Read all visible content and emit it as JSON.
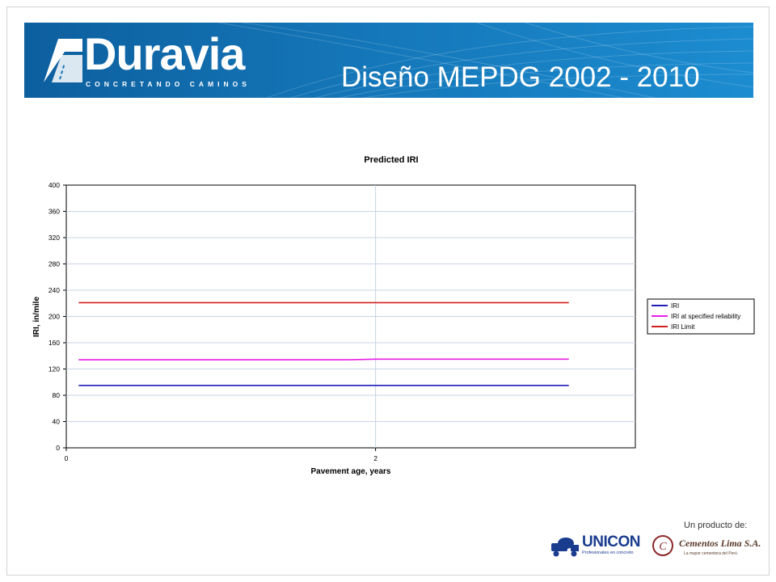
{
  "slide": {
    "title": "Diseño MEPDG 2002 - 2010",
    "footer_label": "Un producto de:"
  },
  "brand": {
    "name": "Duravia",
    "tagline": "CONCRETANDO CAMINOS",
    "banner_color": "#1476b8"
  },
  "partners": {
    "unicon_name": "UNICON",
    "unicon_tagline": "Profesionales en concreto",
    "cementos_name": "Cementos Lima S.A.",
    "cementos_tagline": "La mayor cementera del Perú"
  },
  "chart_data": {
    "type": "line",
    "title": "Predicted IRI",
    "xlabel": "Pavement age, years",
    "ylabel": "IRI, in/mile",
    "xlim": [
      0,
      3.68
    ],
    "ylim": [
      0,
      400
    ],
    "x_ticks": [
      0,
      2
    ],
    "y_ticks": [
      0,
      40,
      80,
      120,
      160,
      200,
      240,
      280,
      320,
      360,
      400
    ],
    "grid": true,
    "legend_position": "right",
    "series": [
      {
        "name": "IRI",
        "color": "#1f1fb8",
        "x": [
          0.08,
          1.0,
          2.0,
          3.25
        ],
        "y": [
          95,
          95,
          95,
          95
        ]
      },
      {
        "name": "IRI at specified reliability",
        "color": "#e81ee8",
        "x": [
          0.08,
          1.0,
          1.83,
          2.0,
          3.25
        ],
        "y": [
          134,
          134,
          134,
          135,
          135
        ]
      },
      {
        "name": "IRI Limit",
        "color": "#d11f1f",
        "x": [
          0.08,
          1.0,
          2.0,
          3.25
        ],
        "y": [
          221,
          221,
          221,
          221
        ]
      }
    ]
  }
}
